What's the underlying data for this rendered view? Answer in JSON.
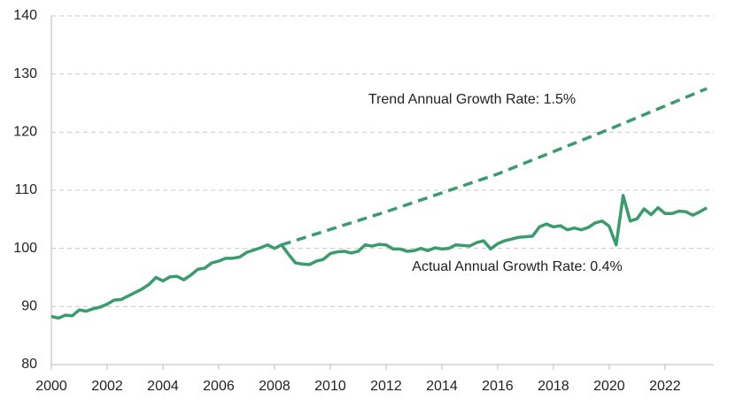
{
  "chart_data": {
    "type": "line",
    "annotations": [
      "Trend Annual Growth Rate: 1.5%",
      "Actual Annual Growth Rate: 0.4%"
    ],
    "xlim": [
      2000,
      2023.75
    ],
    "xticks": [
      2000,
      2002,
      2004,
      2006,
      2008,
      2010,
      2012,
      2014,
      2016,
      2018,
      2020,
      2022
    ],
    "ylim": [
      80,
      140
    ],
    "yticks": [
      80,
      90,
      100,
      110,
      120,
      130,
      140
    ],
    "grid": true,
    "series": [
      {
        "color": "#3a9c6e",
        "dashed": false,
        "x": [
          2000,
          2000.25,
          2000.5,
          2000.75,
          2001,
          2001.25,
          2001.5,
          2001.75,
          2002,
          2002.25,
          2002.5,
          2002.75,
          2003,
          2003.25,
          2003.5,
          2003.75,
          2004,
          2004.25,
          2004.5,
          2004.75,
          2005,
          2005.25,
          2005.5,
          2005.75,
          2006,
          2006.25,
          2006.5,
          2006.75,
          2007,
          2007.25,
          2007.5,
          2007.75,
          2008,
          2008.25,
          2008.5,
          2008.75,
          2009,
          2009.25,
          2009.5,
          2009.75,
          2010,
          2010.25,
          2010.5,
          2010.75,
          2011,
          2011.25,
          2011.5,
          2011.75,
          2012,
          2012.25,
          2012.5,
          2012.75,
          2013,
          2013.25,
          2013.5,
          2013.75,
          2014,
          2014.25,
          2014.5,
          2014.75,
          2015,
          2015.25,
          2015.5,
          2015.75,
          2016,
          2016.25,
          2016.5,
          2016.75,
          2017,
          2017.25,
          2017.5,
          2017.75,
          2018,
          2018.25,
          2018.5,
          2018.75,
          2019,
          2019.25,
          2019.5,
          2019.75,
          2020,
          2020.25,
          2020.5,
          2020.75,
          2021,
          2021.25,
          2021.5,
          2021.75,
          2022,
          2022.25,
          2022.5,
          2022.75,
          2023,
          2023.25,
          2023.5
        ],
        "values": [
          88.3,
          88.0,
          88.5,
          88.4,
          89.4,
          89.2,
          89.6,
          89.9,
          90.4,
          91.1,
          91.2,
          91.8,
          92.4,
          93.0,
          93.8,
          95.0,
          94.4,
          95.1,
          95.2,
          94.6,
          95.4,
          96.4,
          96.6,
          97.5,
          97.8,
          98.3,
          98.3,
          98.5,
          99.3,
          99.7,
          100.1,
          100.6,
          100.0,
          100.6,
          99.0,
          97.5,
          97.3,
          97.2,
          97.8,
          98.1,
          99.1,
          99.4,
          99.5,
          99.2,
          99.5,
          100.6,
          100.4,
          100.7,
          100.6,
          99.9,
          99.9,
          99.5,
          99.6,
          100.0,
          99.6,
          100.1,
          99.9,
          100.0,
          100.6,
          100.5,
          100.4,
          101.0,
          101.3,
          99.9,
          100.8,
          101.3,
          101.6,
          101.9,
          102.0,
          102.1,
          103.7,
          104.2,
          103.7,
          103.9,
          103.2,
          103.5,
          103.2,
          103.6,
          104.4,
          104.7,
          103.8,
          100.6,
          109.1,
          104.7,
          105.1,
          106.8,
          105.8,
          107.0,
          106.0,
          106.0,
          106.4,
          106.3,
          105.7,
          106.3,
          107.0
        ]
      },
      {
        "color": "#3a9c6e",
        "dashed": true,
        "x": [
          2008.25,
          2012,
          2016,
          2020,
          2023.5
        ],
        "values": [
          100.6,
          106.3,
          112.8,
          120.5,
          127.5
        ]
      }
    ]
  }
}
